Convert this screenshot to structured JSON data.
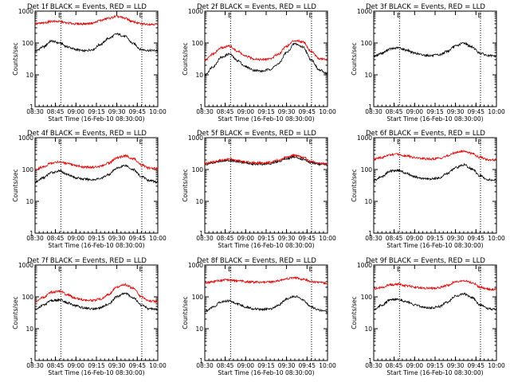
{
  "chart_data": [
    {
      "type": "line",
      "title": "Det 1f BLACK = Events, RED = LLD",
      "xlabel": "Start Time (16-Feb-10 08:30:00)",
      "ylabel": "Counts/sec",
      "yscale": "log",
      "ylim": [
        1,
        1000
      ],
      "x_ticks": [
        "08:30",
        "08:45",
        "09:00",
        "09:15",
        "09:30",
        "09:45",
        "10:00"
      ],
      "y_ticks": [
        "1",
        "10",
        "100",
        "1000"
      ],
      "markers": [
        "E",
        "E"
      ],
      "series": [
        {
          "color": "#000000",
          "values": [
            55,
            75,
            115,
            100,
            75,
            62,
            56,
            62,
            90,
            140,
            190,
            160,
            95,
            62,
            58,
            58
          ]
        },
        {
          "color": "#e00000",
          "values": [
            400,
            420,
            480,
            470,
            420,
            400,
            400,
            420,
            510,
            600,
            680,
            600,
            460,
            400,
            390,
            390
          ]
        }
      ]
    },
    {
      "type": "line",
      "title": "Det 2f BLACK = Events, RED = LLD",
      "xlabel": "Start Time (16-Feb-10 08:30:00)",
      "ylabel": "Counts/sec",
      "yscale": "log",
      "ylim": [
        1,
        1000
      ],
      "x_ticks": [
        "08:30",
        "08:45",
        "09:00",
        "09:15",
        "09:30",
        "09:45",
        "10:00"
      ],
      "y_ticks": [
        "1",
        "10",
        "100",
        "1000"
      ],
      "markers": [
        "E",
        "E"
      ],
      "series": [
        {
          "color": "#000000",
          "values": [
            10,
            18,
            35,
            45,
            28,
            18,
            14,
            13,
            15,
            22,
            50,
            95,
            75,
            30,
            14,
            11
          ]
        },
        {
          "color": "#e00000",
          "values": [
            28,
            45,
            70,
            80,
            55,
            38,
            32,
            30,
            32,
            45,
            80,
            120,
            110,
            55,
            32,
            30
          ]
        }
      ]
    },
    {
      "type": "line",
      "title": "Det 3f BLACK = Events, RED = LLD",
      "xlabel": "Start Time (16-Feb-10 08:30:00)",
      "ylabel": "Counts/sec",
      "yscale": "log",
      "ylim": [
        1,
        1000
      ],
      "x_ticks": [
        "08:30",
        "08:45",
        "09:00",
        "09:15",
        "09:30",
        "09:45",
        "10:00"
      ],
      "y_ticks": [
        "1",
        "10",
        "100",
        "1000"
      ],
      "markers": [
        "E",
        "E"
      ],
      "series": [
        {
          "color": "#000000",
          "values": [
            38,
            48,
            65,
            70,
            60,
            48,
            42,
            40,
            42,
            55,
            80,
            100,
            75,
            48,
            40,
            38
          ]
        }
      ]
    },
    {
      "type": "line",
      "title": "Det 4f BLACK = Events, RED = LLD",
      "xlabel": "Start Time (16-Feb-10 08:30:00)",
      "ylabel": "Counts/sec",
      "yscale": "log",
      "ylim": [
        1,
        1000
      ],
      "x_ticks": [
        "08:30",
        "08:45",
        "09:00",
        "09:15",
        "09:30",
        "09:45",
        "10:00"
      ],
      "y_ticks": [
        "1",
        "10",
        "100",
        "1000"
      ],
      "markers": [
        "E",
        "E"
      ],
      "series": [
        {
          "color": "#000000",
          "values": [
            40,
            55,
            80,
            90,
            70,
            55,
            50,
            48,
            52,
            70,
            110,
            135,
            100,
            60,
            45,
            40
          ]
        },
        {
          "color": "#e00000",
          "values": [
            100,
            120,
            160,
            175,
            150,
            130,
            120,
            118,
            125,
            160,
            230,
            270,
            220,
            140,
            110,
            105
          ]
        }
      ]
    },
    {
      "type": "line",
      "title": "Det 5f BLACK = Events, RED = LLD",
      "xlabel": "Start Time (16-Feb-10 08:30:00)",
      "ylabel": "Counts/sec",
      "yscale": "log",
      "ylim": [
        1,
        1000
      ],
      "x_ticks": [
        "08:30",
        "08:45",
        "09:00",
        "09:15",
        "09:30",
        "09:45",
        "10:00"
      ],
      "y_ticks": [
        "1",
        "10",
        "100",
        "1000"
      ],
      "markers": [
        "E",
        "E"
      ],
      "series": [
        {
          "color": "#000000",
          "values": [
            145,
            160,
            185,
            195,
            180,
            160,
            150,
            148,
            155,
            180,
            225,
            250,
            210,
            165,
            145,
            140
          ]
        },
        {
          "color": "#e00000",
          "values": [
            155,
            170,
            195,
            210,
            195,
            172,
            162,
            160,
            168,
            195,
            245,
            280,
            240,
            180,
            158,
            150
          ]
        }
      ]
    },
    {
      "type": "line",
      "title": "Det 6f BLACK = Events, RED = LLD",
      "xlabel": "Start Time (16-Feb-10 08:30:00)",
      "ylabel": "Counts/sec",
      "yscale": "log",
      "ylim": [
        1,
        1000
      ],
      "x_ticks": [
        "08:30",
        "08:45",
        "09:00",
        "09:15",
        "09:30",
        "09:45",
        "10:00"
      ],
      "y_ticks": [
        "1",
        "10",
        "100",
        "1000"
      ],
      "markers": [
        "E",
        "E"
      ],
      "series": [
        {
          "color": "#000000",
          "values": [
            45,
            60,
            90,
            95,
            75,
            58,
            52,
            50,
            55,
            75,
            115,
            140,
            105,
            62,
            48,
            45
          ]
        },
        {
          "color": "#e00000",
          "values": [
            210,
            240,
            290,
            300,
            270,
            235,
            220,
            215,
            225,
            265,
            340,
            380,
            320,
            240,
            205,
            200
          ]
        }
      ]
    },
    {
      "type": "line",
      "title": "Det 7f BLACK = Events, RED = LLD",
      "xlabel": "Start Time (16-Feb-10 08:30:00)",
      "ylabel": "Counts/sec",
      "yscale": "log",
      "ylim": [
        1,
        1000
      ],
      "x_ticks": [
        "08:30",
        "08:45",
        "09:00",
        "09:15",
        "09:30",
        "09:45",
        "10:00"
      ],
      "y_ticks": [
        "1",
        "10",
        "100",
        "1000"
      ],
      "markers": [
        "E",
        "E"
      ],
      "series": [
        {
          "color": "#000000",
          "values": [
            40,
            55,
            75,
            80,
            65,
            52,
            45,
            42,
            45,
            60,
            100,
            130,
            95,
            55,
            42,
            40
          ]
        },
        {
          "color": "#e00000",
          "values": [
            70,
            95,
            140,
            150,
            115,
            90,
            80,
            78,
            85,
            120,
            200,
            240,
            190,
            100,
            75,
            70
          ]
        }
      ]
    },
    {
      "type": "line",
      "title": "Det 8f BLACK = Events, RED = LLD",
      "xlabel": "Start Time (16-Feb-10 08:30:00)",
      "ylabel": "Counts/sec",
      "yscale": "log",
      "ylim": [
        1,
        1000
      ],
      "x_ticks": [
        "08:30",
        "08:45",
        "09:00",
        "09:15",
        "09:30",
        "09:45",
        "10:00"
      ],
      "y_ticks": [
        "1",
        "10",
        "100",
        "1000"
      ],
      "markers": [
        "E",
        "E"
      ],
      "series": [
        {
          "color": "#000000",
          "values": [
            35,
            48,
            70,
            75,
            60,
            48,
            42,
            40,
            42,
            55,
            85,
            105,
            80,
            48,
            38,
            35
          ]
        },
        {
          "color": "#e00000",
          "values": [
            280,
            300,
            330,
            340,
            320,
            300,
            290,
            285,
            290,
            320,
            370,
            400,
            360,
            300,
            280,
            270
          ]
        }
      ]
    },
    {
      "type": "line",
      "title": "Det 9f BLACK = Events, RED = LLD",
      "xlabel": "Start Time (16-Feb-10 08:30:00)",
      "ylabel": "Counts/sec",
      "yscale": "log",
      "ylim": [
        1,
        1000
      ],
      "x_ticks": [
        "08:30",
        "08:45",
        "09:00",
        "09:15",
        "09:30",
        "09:45",
        "10:00"
      ],
      "y_ticks": [
        "1",
        "10",
        "100",
        "1000"
      ],
      "markers": [
        "E",
        "E"
      ],
      "series": [
        {
          "color": "#000000",
          "values": [
            40,
            55,
            80,
            85,
            70,
            55,
            48,
            45,
            50,
            68,
            105,
            125,
            95,
            55,
            42,
            40
          ]
        },
        {
          "color": "#e00000",
          "values": [
            180,
            200,
            240,
            250,
            225,
            200,
            190,
            185,
            195,
            230,
            300,
            330,
            280,
            200,
            175,
            170
          ]
        }
      ]
    }
  ]
}
